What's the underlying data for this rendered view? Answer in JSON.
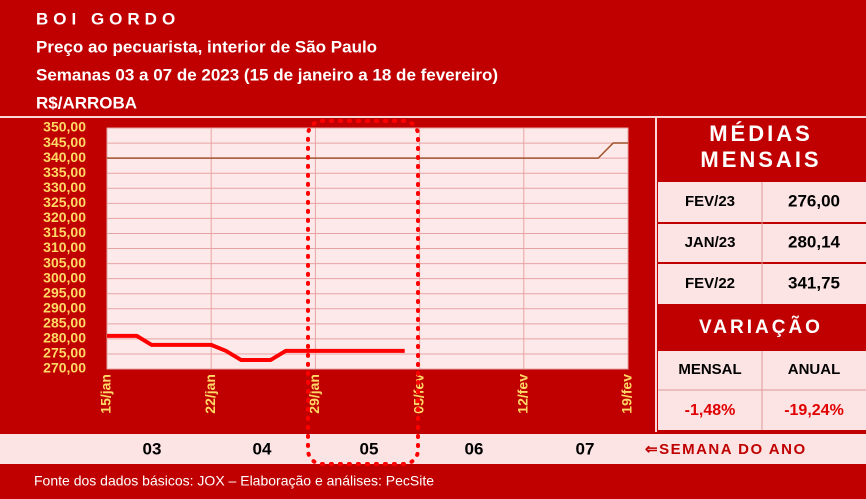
{
  "chart_data": {
    "type": "line",
    "title": "BOI GORDO",
    "subtitles": [
      "Preço ao pecuarista, interior de São Paulo",
      "Semanas 03 a 07 de 2023 (15 de janeiro a 18 de fevereiro)",
      "R$/ARROBA"
    ],
    "x": [
      "15/jan",
      "16/jan",
      "17/jan",
      "18/jan",
      "19/jan",
      "20/jan",
      "21/jan",
      "22/jan",
      "23/jan",
      "24/jan",
      "25/jan",
      "26/jan",
      "27/jan",
      "28/jan",
      "29/jan",
      "30/jan",
      "31/jan",
      "01/fev",
      "02/fev",
      "03/fev",
      "04/fev",
      "05/fev",
      "06/fev",
      "07/fev",
      "08/fev",
      "09/fev",
      "10/fev",
      "11/fev",
      "12/fev",
      "13/fev",
      "14/fev",
      "15/fev",
      "16/fev",
      "17/fev",
      "18/fev",
      "19/fev"
    ],
    "series": [
      {
        "color": "#a0522d",
        "values": [
          340,
          340,
          340,
          340,
          340,
          340,
          340,
          340,
          340,
          340,
          340,
          340,
          340,
          340,
          340,
          340,
          340,
          340,
          340,
          340,
          340,
          340,
          340,
          340,
          340,
          340,
          340,
          340,
          340,
          340,
          340,
          340,
          340,
          340,
          345,
          345
        ]
      },
      {
        "color": "#ff0000",
        "values": [
          281,
          281,
          281,
          278,
          278,
          278,
          278,
          278,
          276,
          273,
          273,
          273,
          276,
          276,
          276,
          276,
          276,
          276,
          276,
          276,
          276,
          null,
          null,
          null,
          null,
          null,
          null,
          null,
          null,
          null,
          null,
          null,
          null,
          null,
          null,
          null
        ]
      }
    ],
    "ylim": [
      270,
      350
    ],
    "yticks": [
      {
        "value": 270,
        "label": "270,00"
      },
      {
        "value": 275,
        "label": "275,00"
      },
      {
        "value": 280,
        "label": "280,00"
      },
      {
        "value": 285,
        "label": "285,00"
      },
      {
        "value": 290,
        "label": "290,00"
      },
      {
        "value": 295,
        "label": "295,00"
      },
      {
        "value": 300,
        "label": "300,00"
      },
      {
        "value": 305,
        "label": "305,00"
      },
      {
        "value": 310,
        "label": "310,00"
      },
      {
        "value": 315,
        "label": "315,00"
      },
      {
        "value": 320,
        "label": "320,00"
      },
      {
        "value": 325,
        "label": "325,00"
      },
      {
        "value": 330,
        "label": "330,00"
      },
      {
        "value": 335,
        "label": "335,00"
      },
      {
        "value": 340,
        "label": "340,00"
      },
      {
        "value": 345,
        "label": "345,00"
      },
      {
        "value": 350,
        "label": "350,00"
      }
    ],
    "xticks": [
      "15/jan",
      "22/jan",
      "29/jan",
      "05/fev",
      "12/fev",
      "19/fev"
    ],
    "grid": true
  },
  "panel": {
    "title": "MÉDIAS MENSAIS",
    "rows": [
      [
        "FEV/23",
        "276,00"
      ],
      [
        "JAN/23",
        "280,14"
      ],
      [
        "FEV/22",
        "341,75"
      ]
    ],
    "variation": {
      "title": "VARIAÇÃO",
      "headers": [
        "MENSAL",
        "ANUAL"
      ],
      "values": [
        "-1,48%",
        "-19,24%"
      ]
    }
  },
  "weeks": {
    "labels": [
      "03",
      "04",
      "05",
      "06",
      "07"
    ],
    "caption": "⇐SEMANA DO ANO"
  },
  "footer": "Fonte dos dados básicos: JOX – Elaboração e análises: PecSite"
}
